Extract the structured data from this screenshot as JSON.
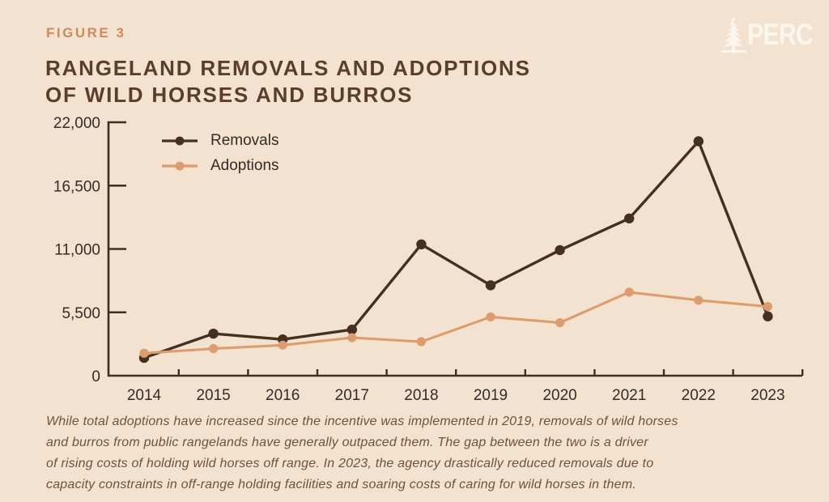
{
  "figure_label": "FIGURE 3",
  "title_lines": [
    "RANGELAND REMOVALS AND ADOPTIONS",
    "OF WILD HORSES AND BURROS"
  ],
  "logo": {
    "text": "PERC",
    "icon": "pine-tree-icon"
  },
  "caption_lines": [
    "While total adoptions have increased since the incentive was implemented in 2019, removals of wild horses",
    "and burros from public rangelands have generally outpaced them. The gap between the two is a driver",
    "of rising costs of holding wild horses off range. In 2023, the agency drastically reduced removals due to",
    "capacity constraints in off-range holding facilities and soaring costs of caring for wild horses in them."
  ],
  "colors": {
    "background": "#f4e2d1",
    "figure_label": "#cc8b5e",
    "title": "#5a3e2b",
    "removals": "#44301f",
    "adoptions": "#dd9c6e",
    "axis": "#3a2f23",
    "tick_label": "#322c26",
    "caption": "#6e523c",
    "logo": "#fbf7ee"
  },
  "chart_data": {
    "type": "line",
    "categories": [
      "2014",
      "2015",
      "2016",
      "2017",
      "2018",
      "2019",
      "2020",
      "2021",
      "2022",
      "2023"
    ],
    "series": [
      {
        "name": "Removals",
        "color": "#44301f",
        "values": [
          1550,
          3650,
          3150,
          4000,
          11400,
          7850,
          10900,
          13650,
          20350,
          5150
        ]
      },
      {
        "name": "Adoptions",
        "color": "#dd9c6e",
        "values": [
          1950,
          2350,
          2650,
          3300,
          2950,
          5100,
          4600,
          7250,
          6550,
          6000
        ]
      }
    ],
    "xlabel": "",
    "ylabel": "",
    "ylim": [
      0,
      22000
    ],
    "y_ticks": [
      0,
      5500,
      11000,
      16500,
      22000
    ],
    "y_tick_labels": [
      "0",
      "5,500",
      "11,000",
      "16,500",
      "22,000"
    ],
    "legend_position": "top-left-inside",
    "grid": false
  }
}
